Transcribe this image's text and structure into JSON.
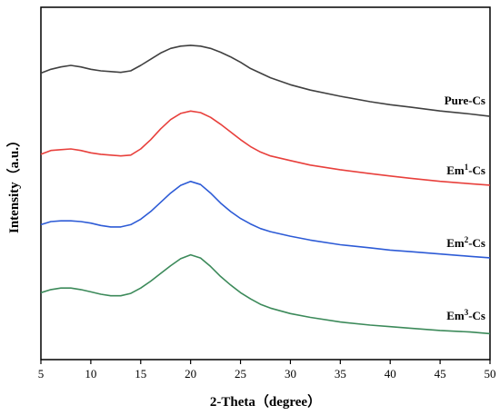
{
  "chart_data": {
    "type": "line",
    "xlabel": "2-Theta（degree）",
    "ylabel": "Intensity（a.u.）",
    "xlim": [
      5,
      50
    ],
    "xticks": [
      5,
      10,
      15,
      20,
      25,
      30,
      35,
      40,
      45,
      50
    ],
    "y_ticks_shown": false,
    "grid": false,
    "legend": "inline-labels-right",
    "series": [
      {
        "name": "Pure-Cs",
        "label": "Pure-Cs",
        "label_sup": "",
        "label_suffix": "",
        "color": "#404040",
        "x": [
          5,
          6,
          7,
          8,
          9,
          10,
          11,
          12,
          13,
          14,
          15,
          16,
          17,
          18,
          19,
          20,
          21,
          22,
          23,
          24,
          25,
          26,
          27,
          28,
          30,
          32,
          35,
          38,
          40,
          42,
          45,
          48,
          50
        ],
        "y": [
          0.7,
          0.75,
          0.78,
          0.8,
          0.78,
          0.75,
          0.73,
          0.72,
          0.71,
          0.73,
          0.8,
          0.88,
          0.96,
          1.02,
          1.05,
          1.06,
          1.05,
          1.02,
          0.97,
          0.91,
          0.84,
          0.76,
          0.7,
          0.64,
          0.55,
          0.48,
          0.4,
          0.33,
          0.29,
          0.26,
          0.21,
          0.17,
          0.14
        ]
      },
      {
        "name": "Em1-Cs",
        "label": "Em",
        "label_sup": "1",
        "label_suffix": "-Cs",
        "color": "#e8403c",
        "x": [
          5,
          6,
          7,
          8,
          9,
          10,
          11,
          12,
          13,
          14,
          15,
          16,
          17,
          18,
          19,
          20,
          21,
          22,
          23,
          24,
          25,
          26,
          27,
          28,
          30,
          32,
          35,
          38,
          40,
          42,
          45,
          48,
          50
        ],
        "y": [
          0.53,
          0.58,
          0.59,
          0.6,
          0.58,
          0.55,
          0.53,
          0.52,
          0.51,
          0.52,
          0.6,
          0.72,
          0.86,
          0.98,
          1.06,
          1.09,
          1.07,
          1.01,
          0.92,
          0.82,
          0.72,
          0.63,
          0.56,
          0.51,
          0.45,
          0.39,
          0.33,
          0.28,
          0.25,
          0.22,
          0.18,
          0.15,
          0.13
        ]
      },
      {
        "name": "Em2-Cs",
        "label": "Em",
        "label_sup": "2",
        "label_suffix": "-Cs",
        "color": "#2d5bd6",
        "x": [
          5,
          6,
          7,
          8,
          9,
          10,
          11,
          12,
          13,
          14,
          15,
          16,
          17,
          18,
          19,
          20,
          21,
          22,
          23,
          24,
          25,
          26,
          27,
          28,
          30,
          32,
          35,
          38,
          40,
          42,
          45,
          48,
          50
        ],
        "y": [
          0.56,
          0.6,
          0.61,
          0.61,
          0.6,
          0.58,
          0.55,
          0.53,
          0.53,
          0.56,
          0.63,
          0.73,
          0.85,
          0.97,
          1.07,
          1.12,
          1.08,
          0.97,
          0.84,
          0.73,
          0.64,
          0.57,
          0.51,
          0.47,
          0.41,
          0.36,
          0.3,
          0.26,
          0.23,
          0.21,
          0.18,
          0.15,
          0.13
        ]
      },
      {
        "name": "Em3-Cs",
        "label": "Em",
        "label_sup": "3",
        "label_suffix": "-Cs",
        "color": "#3c8a5a",
        "x": [
          5,
          6,
          7,
          8,
          9,
          10,
          11,
          12,
          13,
          14,
          15,
          16,
          17,
          18,
          19,
          20,
          21,
          22,
          23,
          24,
          25,
          26,
          27,
          28,
          30,
          32,
          35,
          38,
          40,
          42,
          45,
          48,
          50
        ],
        "y": [
          0.62,
          0.66,
          0.68,
          0.68,
          0.66,
          0.63,
          0.6,
          0.58,
          0.58,
          0.61,
          0.68,
          0.77,
          0.87,
          0.97,
          1.06,
          1.11,
          1.07,
          0.96,
          0.83,
          0.72,
          0.62,
          0.54,
          0.47,
          0.42,
          0.35,
          0.3,
          0.24,
          0.2,
          0.18,
          0.16,
          0.13,
          0.11,
          0.09
        ]
      }
    ]
  }
}
